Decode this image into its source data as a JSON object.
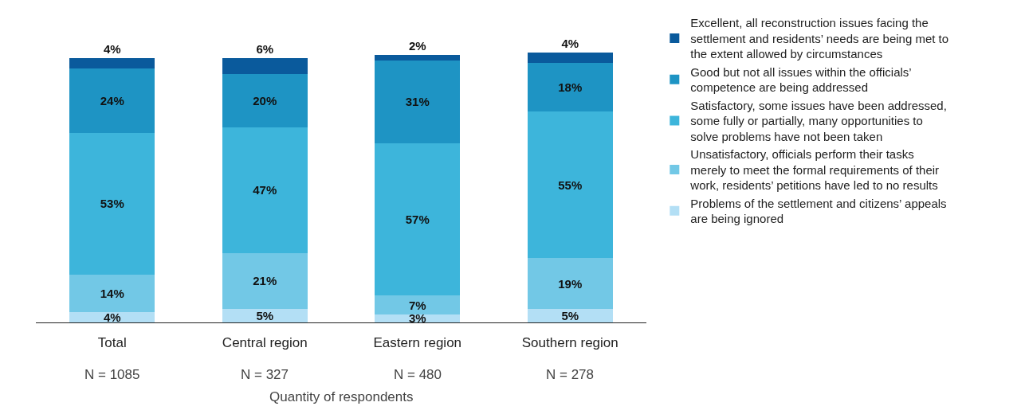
{
  "chart_data": {
    "type": "bar",
    "stacked": true,
    "tick_labels": "x",
    "legend": "right",
    "xlabel": "Quantity of respondents",
    "categories": [
      "Total",
      "Central region",
      "Eastern region",
      "Southern region"
    ],
    "annotations": [
      "N = 1085",
      "N = 327",
      "N = 480",
      "N = 278"
    ],
    "series": [
      {
        "name": "Problems of the settlement and citizens’ appeals are being ignored",
        "color": "#b3dff5",
        "values": [
          4,
          5,
          3,
          5
        ],
        "value_labels": [
          "4%",
          "5%",
          "3%",
          "5%"
        ]
      },
      {
        "name": "Unsatisfactory, officials perform their tasks merely to meet the formal requirements of their work, residents’ petitions have led to no results",
        "color": "#72c8e6",
        "values": [
          14,
          21,
          7,
          19
        ],
        "value_labels": [
          "14%",
          "21%",
          "7%",
          "19%"
        ]
      },
      {
        "name": "Satisfactory, some issues have been addressed, some fully or partially, many opportunities to solve problems have not been taken",
        "color": "#3db5db",
        "values": [
          53,
          47,
          57,
          55
        ],
        "value_labels": [
          "53%",
          "47%",
          "57%",
          "55%"
        ]
      },
      {
        "name": "Good but not all issues within the officials’ competence are being addressed",
        "color": "#1e94c4",
        "values": [
          24,
          20,
          31,
          18
        ],
        "value_labels": [
          "24%",
          "20%",
          "31%",
          "18%"
        ]
      },
      {
        "name": "Excellent, all reconstruction issues facing the settlement and residents’ needs are being met to the extent allowed by circumstances",
        "color": "#0a5a9c",
        "values": [
          4,
          6,
          2,
          4
        ],
        "value_labels": [
          "4%",
          "6%",
          "2%",
          "4%"
        ]
      }
    ]
  }
}
